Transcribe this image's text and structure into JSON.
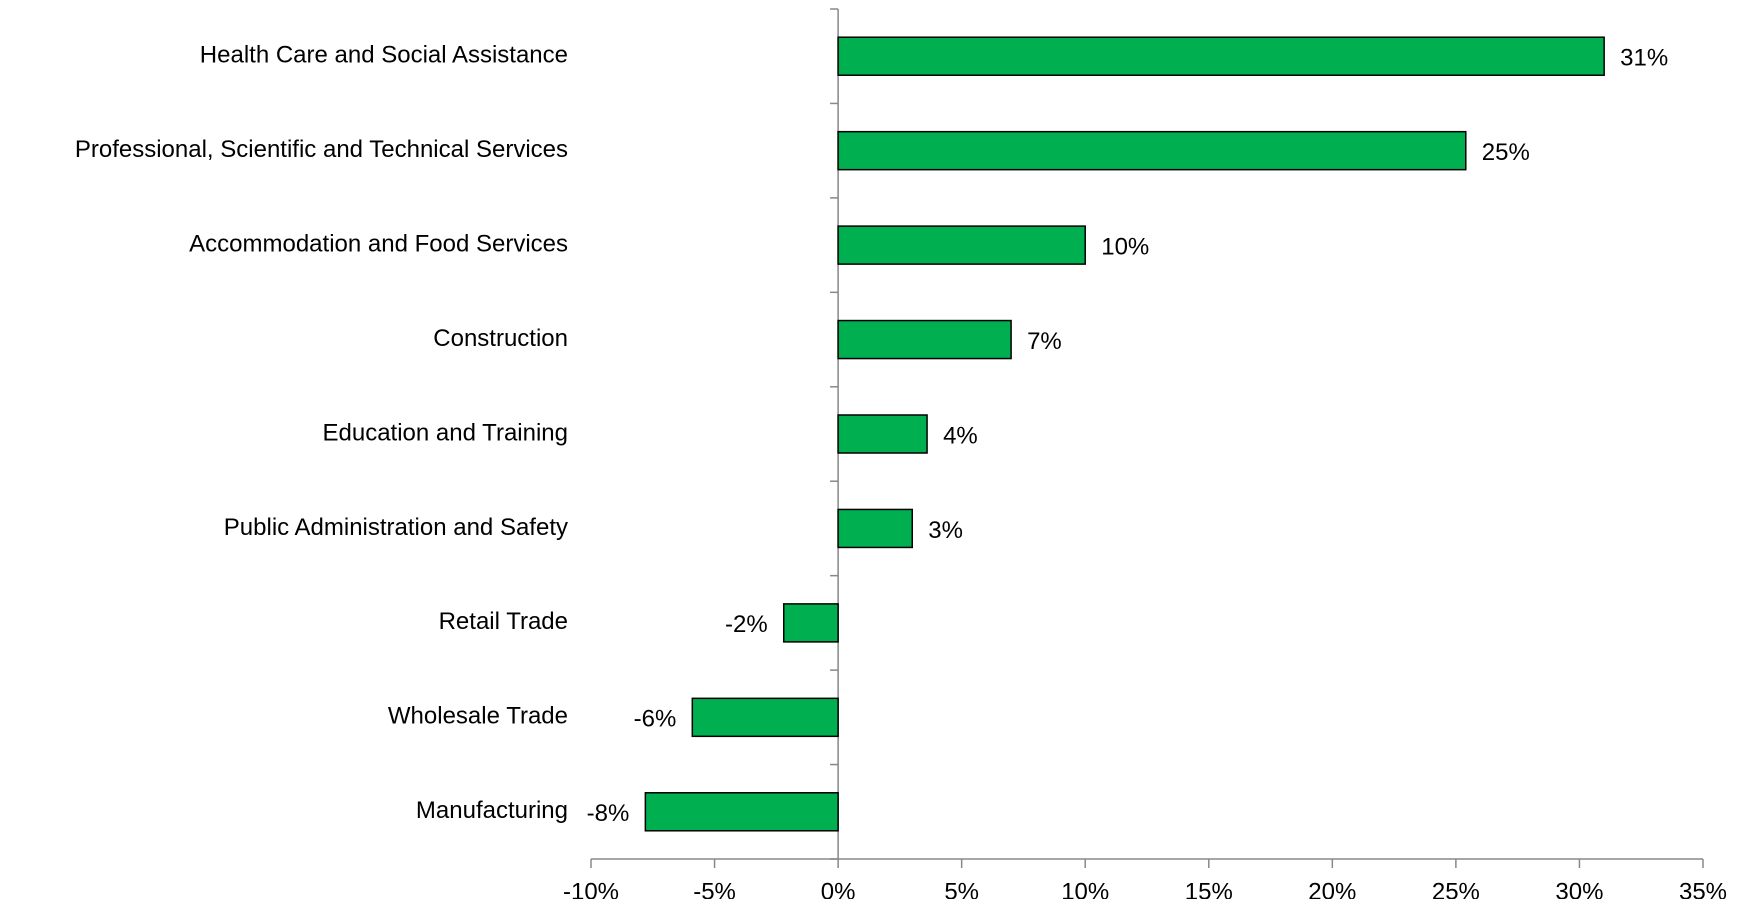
{
  "chart_data": {
    "type": "hbar",
    "categories": [
      "Health Care and Social Assistance",
      "Professional, Scientific and Technical Services",
      "Accommodation and Food Services",
      "Construction",
      "Education and Training",
      "Public Administration and Safety",
      "Retail Trade",
      "Wholesale Trade",
      "Manufacturing"
    ],
    "values": [
      31,
      25.4,
      10,
      7,
      3.6,
      3,
      -2.2,
      -5.9,
      -7.8
    ],
    "value_labels": [
      "31%",
      "25%",
      "10%",
      "7%",
      "4%",
      "3%",
      "-2%",
      "-6%",
      "-8%"
    ],
    "color": "#00b050",
    "xlim": [
      -10,
      35
    ],
    "xticks": [
      {
        "value": -10,
        "label": "-10%"
      },
      {
        "value": -5,
        "label": "-5%"
      },
      {
        "value": 0,
        "label": "0%"
      },
      {
        "value": 5,
        "label": "5%"
      },
      {
        "value": 10,
        "label": "10%"
      },
      {
        "value": 15,
        "label": "15%"
      },
      {
        "value": 20,
        "label": "20%"
      },
      {
        "value": 25,
        "label": "25%"
      },
      {
        "value": 30,
        "label": "30%"
      },
      {
        "value": 35,
        "label": "35%"
      }
    ],
    "grid": false
  }
}
